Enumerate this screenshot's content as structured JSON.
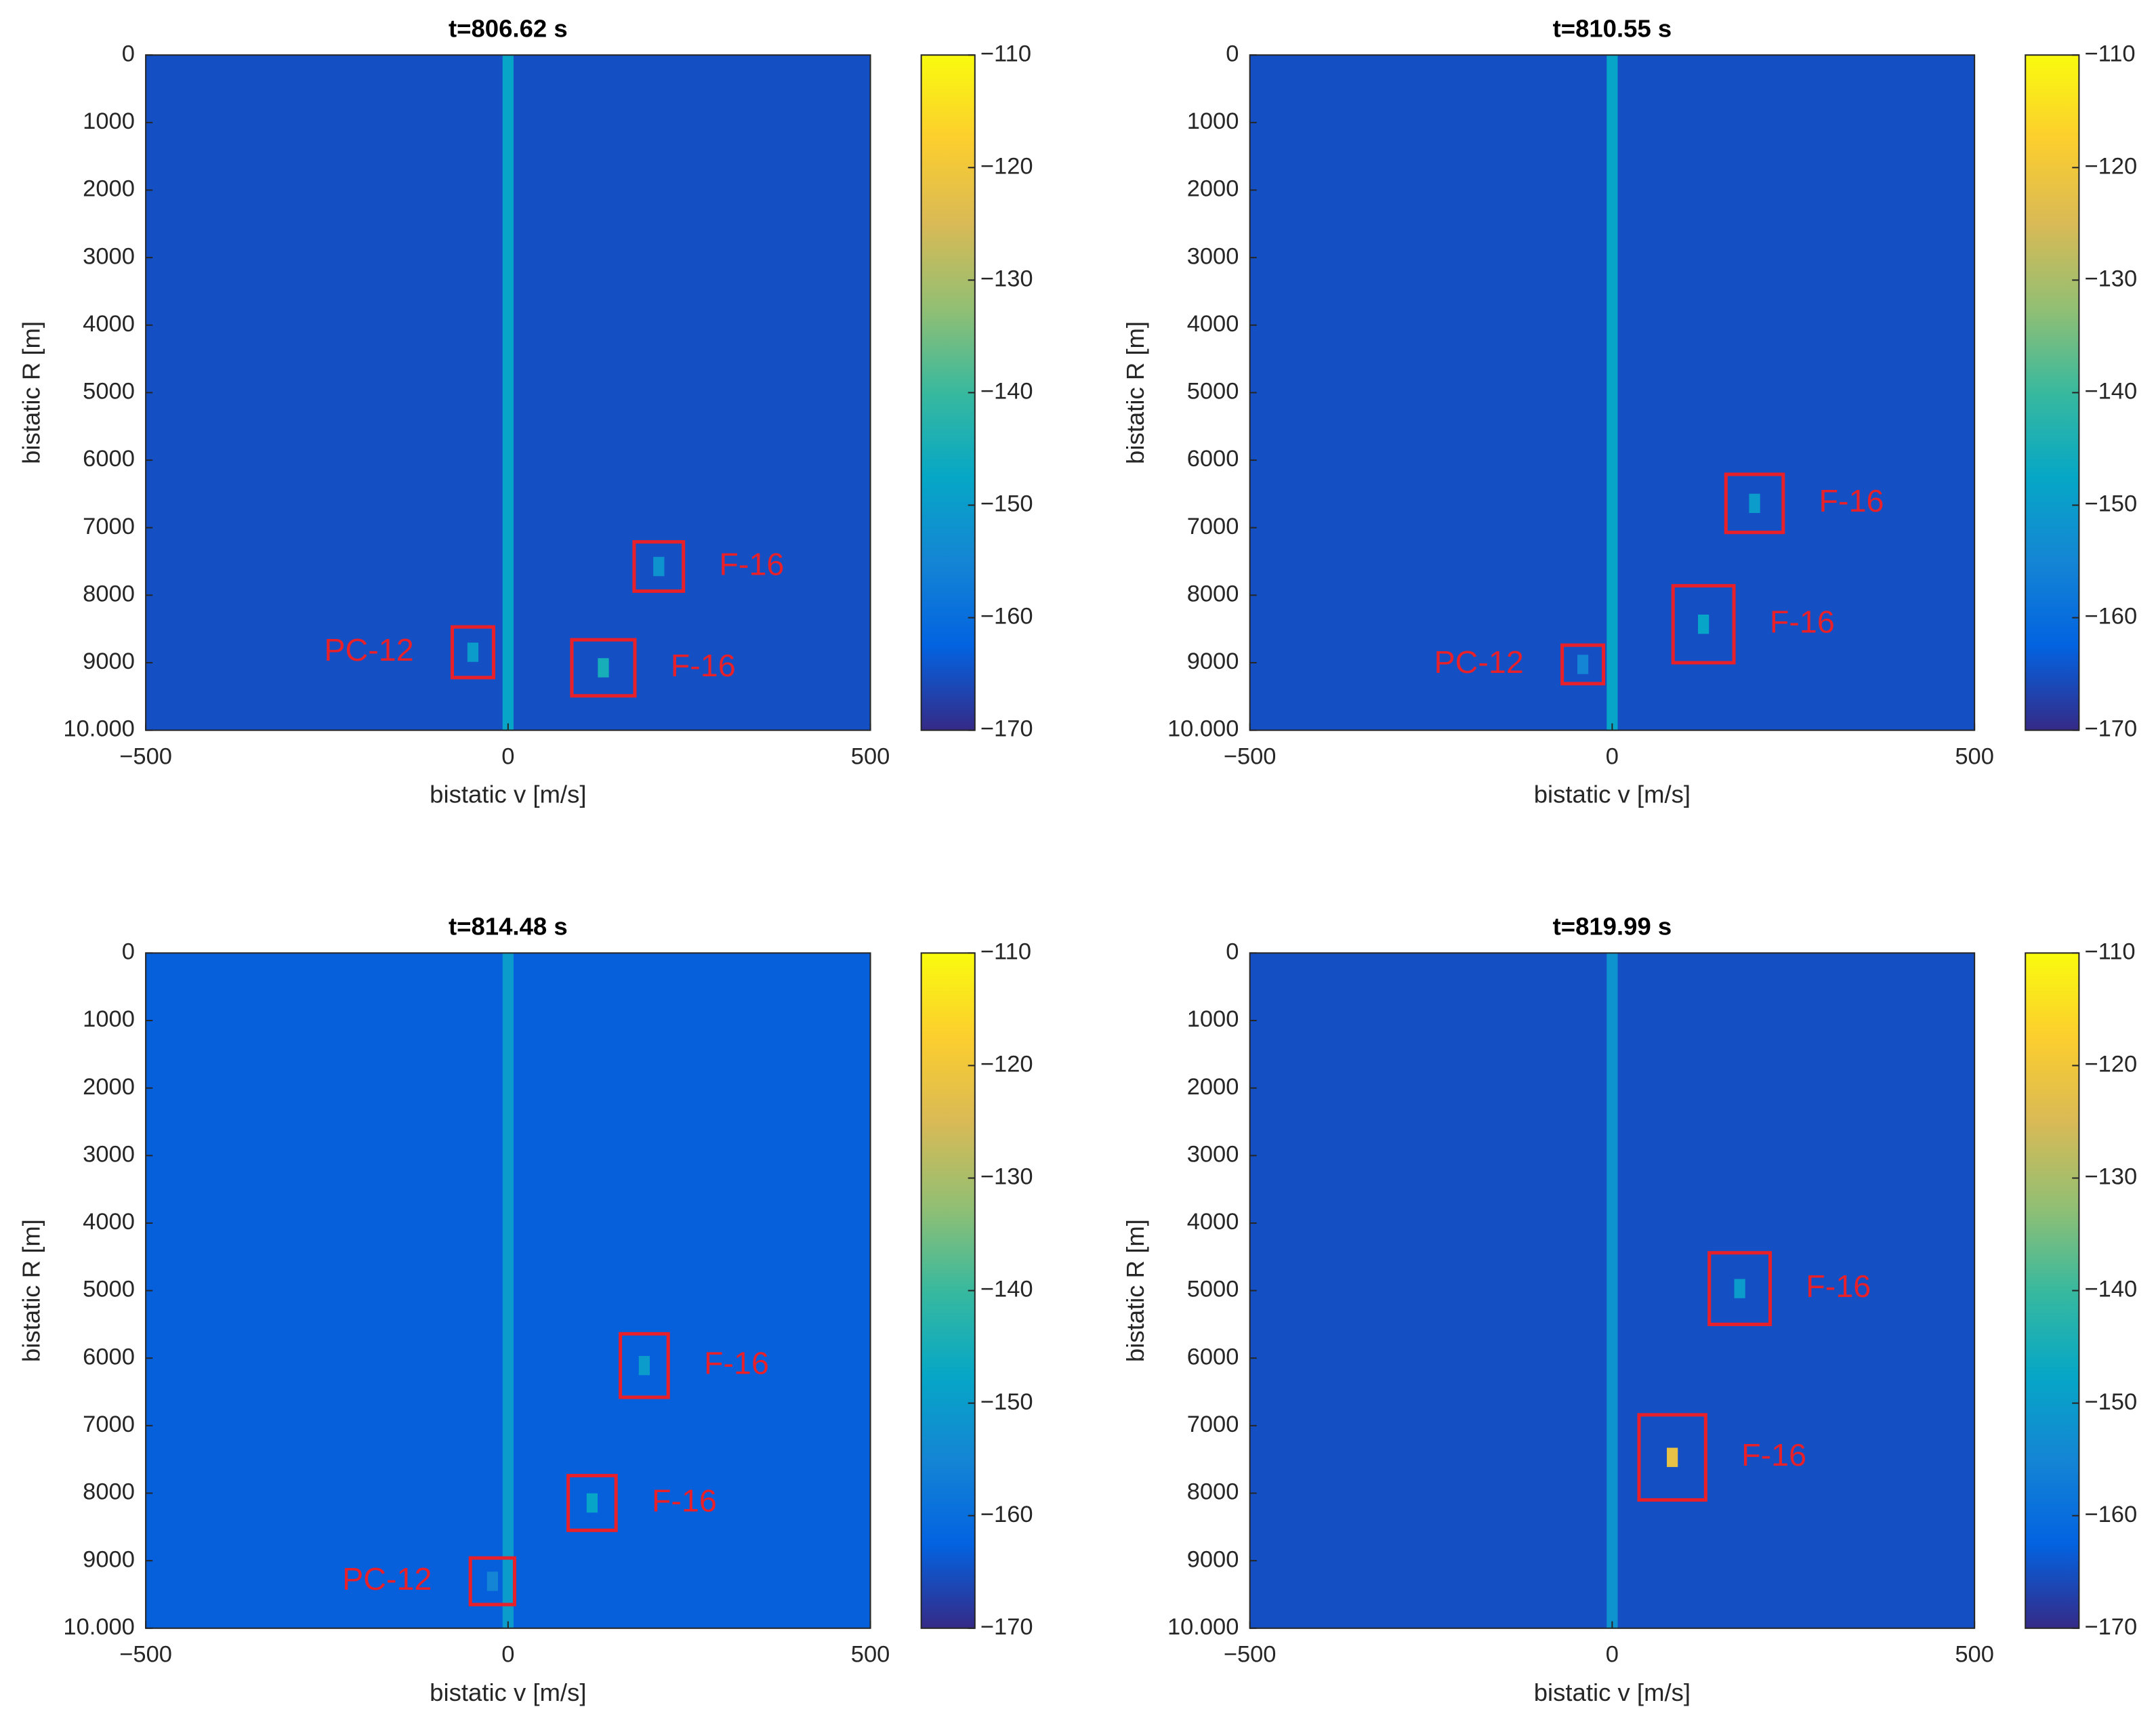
{
  "chart_data": [
    {
      "type": "heatmap",
      "title": "t=806.62 s",
      "x_label": "bistatic v [m/s]",
      "y_label": "bistatic R [m]",
      "xlim": [
        -500,
        500
      ],
      "xticks": [
        {
          "value": -500,
          "label": "−500"
        },
        0,
        500
      ],
      "ylim": [
        0,
        10000
      ],
      "y_reversed": true,
      "yticks": [
        0,
        1000,
        2000,
        3000,
        4000,
        5000,
        6000,
        7000,
        8000,
        9000,
        {
          "value": 10000,
          "label": "10.000"
        }
      ],
      "clim": [
        -170,
        -110
      ],
      "cticks": [
        {
          "value": -110,
          "label": "−110"
        },
        {
          "value": -120,
          "label": "−120"
        },
        {
          "value": -130,
          "label": "−130"
        },
        {
          "value": -140,
          "label": "−140"
        },
        {
          "value": -150,
          "label": "−150"
        },
        {
          "value": -160,
          "label": "−160"
        },
        {
          "value": -170,
          "label": "−170"
        }
      ],
      "colormap": [
        "#352a87",
        "#0363e1",
        "#1485d4",
        "#06a7c6",
        "#38b99e",
        "#92bf73",
        "#d9ba56",
        "#fcce2e",
        "#f9fb0e"
      ],
      "background_level": -165,
      "clutter": {
        "v": 0,
        "value": -148
      },
      "annotations": [
        {
          "text": "F-16",
          "v": [
            174,
            242
          ],
          "r": [
            7210,
            7940
          ],
          "peak": -152,
          "side": "right"
        },
        {
          "text": "PC-12",
          "v": [
            -77,
            -20
          ],
          "r": [
            8470,
            9220
          ],
          "peak": -150,
          "side": "left"
        },
        {
          "text": "F-16",
          "v": [
            88,
            175
          ],
          "r": [
            8660,
            9490
          ],
          "peak": -145,
          "side": "right"
        }
      ]
    },
    {
      "type": "heatmap",
      "title": "t=810.55 s",
      "x_label": "bistatic v [m/s]",
      "y_label": "bistatic R [m]",
      "xlim": [
        -500,
        500
      ],
      "xticks": [
        {
          "value": -500,
          "label": "−500"
        },
        0,
        500
      ],
      "ylim": [
        0,
        10000
      ],
      "y_reversed": true,
      "yticks": [
        0,
        1000,
        2000,
        3000,
        4000,
        5000,
        6000,
        7000,
        8000,
        9000,
        {
          "value": 10000,
          "label": "10.000"
        }
      ],
      "clim": [
        -170,
        -110
      ],
      "cticks": [
        {
          "value": -110,
          "label": "−110"
        },
        {
          "value": -120,
          "label": "−120"
        },
        {
          "value": -130,
          "label": "−130"
        },
        {
          "value": -140,
          "label": "−140"
        },
        {
          "value": -150,
          "label": "−150"
        },
        {
          "value": -160,
          "label": "−160"
        },
        {
          "value": -170,
          "label": "−170"
        }
      ],
      "colormap": [
        "#352a87",
        "#0363e1",
        "#1485d4",
        "#06a7c6",
        "#38b99e",
        "#92bf73",
        "#d9ba56",
        "#fcce2e",
        "#f9fb0e"
      ],
      "background_level": -165,
      "clutter": {
        "v": 0,
        "value": -148
      },
      "annotations": [
        {
          "text": "F-16",
          "v": [
            157,
            236
          ],
          "r": [
            6210,
            7070
          ],
          "peak": -150,
          "side": "right"
        },
        {
          "text": "F-16",
          "v": [
            84,
            168
          ],
          "r": [
            7860,
            9000
          ],
          "peak": -148,
          "side": "right"
        },
        {
          "text": "PC-12",
          "v": [
            -69,
            -12
          ],
          "r": [
            8740,
            9310
          ],
          "peak": -155,
          "side": "left"
        }
      ]
    },
    {
      "type": "heatmap",
      "title": "t=814.48 s",
      "x_label": "bistatic v [m/s]",
      "y_label": "bistatic R [m]",
      "xlim": [
        -500,
        500
      ],
      "xticks": [
        {
          "value": -500,
          "label": "−500"
        },
        0,
        500
      ],
      "ylim": [
        0,
        10000
      ],
      "y_reversed": true,
      "yticks": [
        0,
        1000,
        2000,
        3000,
        4000,
        5000,
        6000,
        7000,
        8000,
        9000,
        {
          "value": 10000,
          "label": "10.000"
        }
      ],
      "clim": [
        -170,
        -110
      ],
      "cticks": [
        {
          "value": -110,
          "label": "−110"
        },
        {
          "value": -120,
          "label": "−120"
        },
        {
          "value": -130,
          "label": "−130"
        },
        {
          "value": -140,
          "label": "−140"
        },
        {
          "value": -150,
          "label": "−150"
        },
        {
          "value": -160,
          "label": "−160"
        },
        {
          "value": -170,
          "label": "−170"
        }
      ],
      "colormap": [
        "#352a87",
        "#0363e1",
        "#1485d4",
        "#06a7c6",
        "#38b99e",
        "#92bf73",
        "#d9ba56",
        "#fcce2e",
        "#f9fb0e"
      ],
      "background_level": -163,
      "clutter": {
        "v": 0,
        "value": -150
      },
      "annotations": [
        {
          "text": "F-16",
          "v": [
            155,
            221
          ],
          "r": [
            5640,
            6580
          ],
          "peak": -150,
          "side": "right"
        },
        {
          "text": "F-16",
          "v": [
            83,
            149
          ],
          "r": [
            7740,
            8550
          ],
          "peak": -148,
          "side": "right"
        },
        {
          "text": "PC-12",
          "v": [
            -52,
            9
          ],
          "r": [
            8960,
            9650
          ],
          "peak": -155,
          "side": "left"
        }
      ]
    },
    {
      "type": "heatmap",
      "title": "t=819.99 s",
      "x_label": "bistatic v [m/s]",
      "y_label": "bistatic R [m]",
      "xlim": [
        -500,
        500
      ],
      "xticks": [
        {
          "value": -500,
          "label": "−500"
        },
        0,
        500
      ],
      "ylim": [
        0,
        10000
      ],
      "y_reversed": true,
      "yticks": [
        0,
        1000,
        2000,
        3000,
        4000,
        5000,
        6000,
        7000,
        8000,
        9000,
        {
          "value": 10000,
          "label": "10.000"
        }
      ],
      "clim": [
        -170,
        -110
      ],
      "cticks": [
        {
          "value": -110,
          "label": "−110"
        },
        {
          "value": -120,
          "label": "−120"
        },
        {
          "value": -130,
          "label": "−130"
        },
        {
          "value": -140,
          "label": "−140"
        },
        {
          "value": -150,
          "label": "−150"
        },
        {
          "value": -160,
          "label": "−160"
        },
        {
          "value": -170,
          "label": "−170"
        }
      ],
      "colormap": [
        "#352a87",
        "#0363e1",
        "#1485d4",
        "#06a7c6",
        "#38b99e",
        "#92bf73",
        "#d9ba56",
        "#fcce2e",
        "#f9fb0e"
      ],
      "background_level": -165,
      "clutter": {
        "v": 0,
        "value": -152
      },
      "annotations": [
        {
          "text": "F-16",
          "v": [
            134,
            218
          ],
          "r": [
            4440,
            5500
          ],
          "peak": -150,
          "side": "right"
        },
        {
          "text": "F-16",
          "v": [
            37,
            129
          ],
          "r": [
            6840,
            8100
          ],
          "peak": -122,
          "side": "right"
        }
      ]
    }
  ]
}
